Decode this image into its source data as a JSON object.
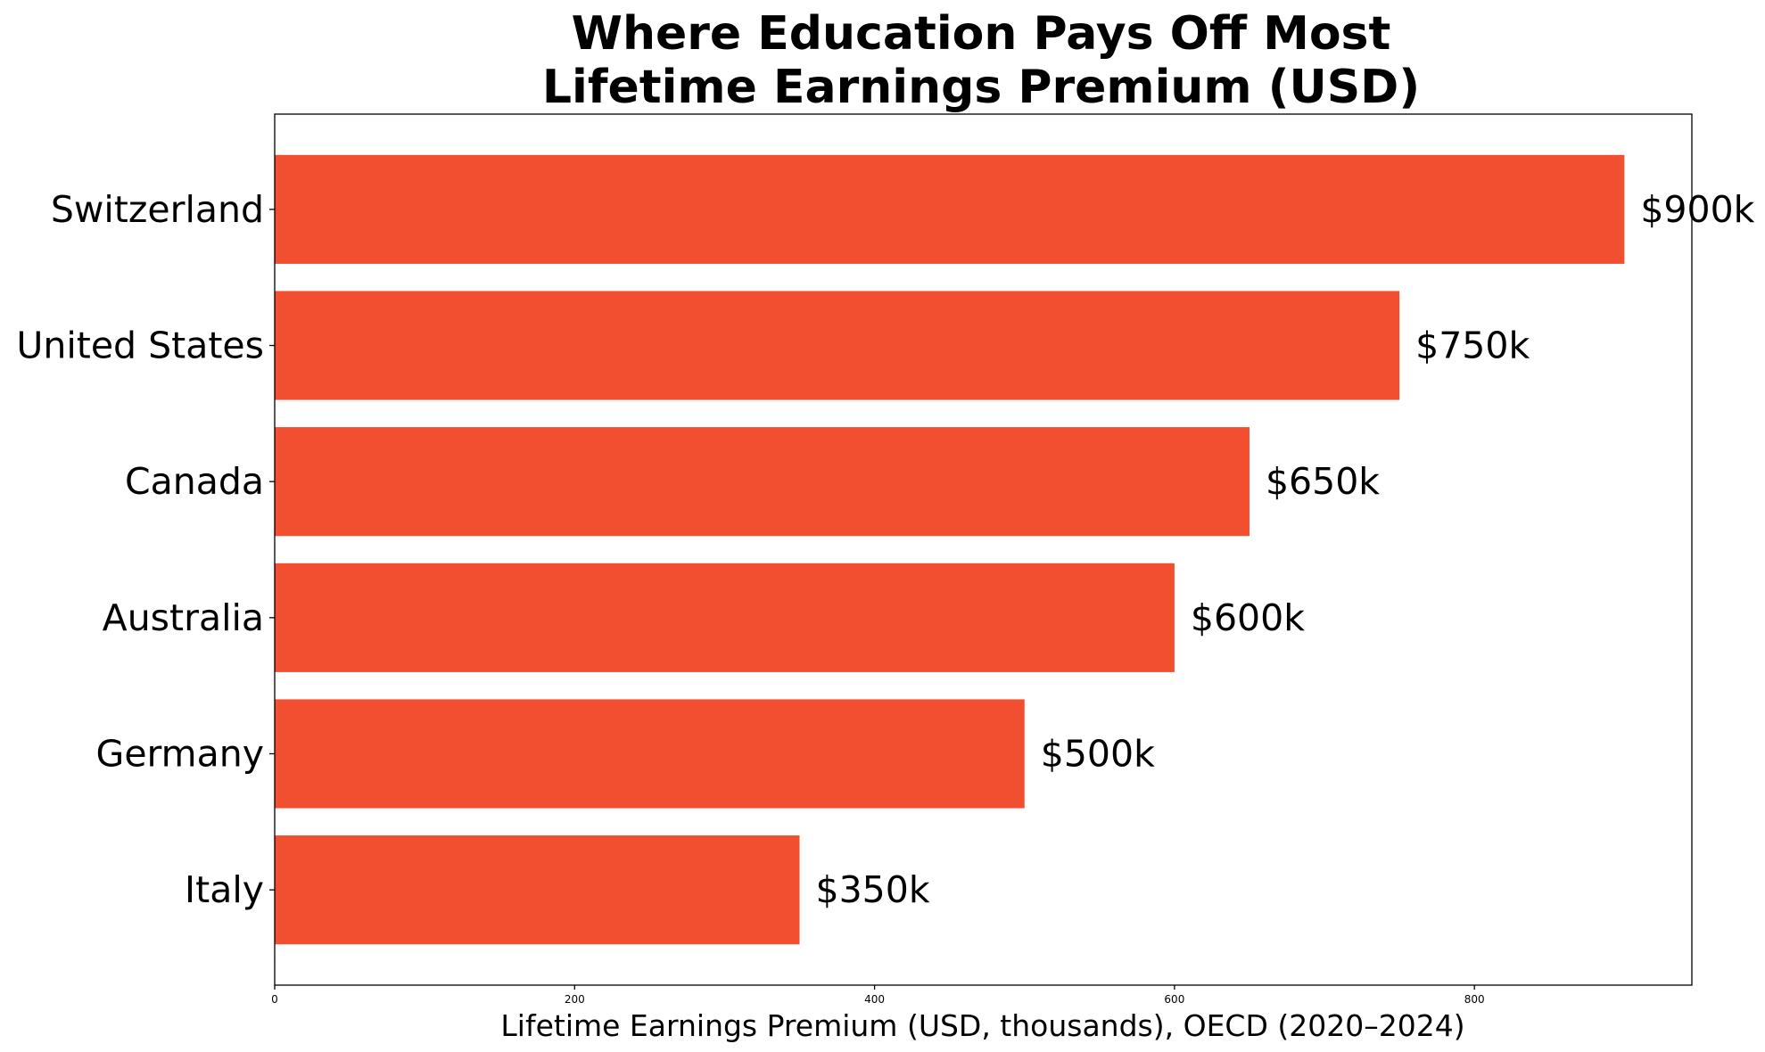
{
  "chart_data": {
    "type": "bar",
    "orientation": "horizontal",
    "title_lines": [
      "Where Education Pays Off Most",
      "Lifetime Earnings Premium (USD)"
    ],
    "xlabel": "Lifetime Earnings Premium (USD, thousands), OECD (2020–2024)",
    "ylabel": "",
    "categories": [
      "Switzerland",
      "United States",
      "Canada",
      "Australia",
      "Germany",
      "Italy"
    ],
    "values": [
      900,
      750,
      650,
      600,
      500,
      350
    ],
    "value_labels": [
      "$900k",
      "$750k",
      "$650k",
      "$600k",
      "$500k",
      "$350k"
    ],
    "xlim": [
      0,
      945
    ],
    "xticks": [
      0,
      200,
      400,
      600,
      800
    ],
    "xtick_labels": [
      "0",
      "200",
      "400",
      "600",
      "800"
    ],
    "grid": false,
    "bar_color": "#f24e30"
  }
}
